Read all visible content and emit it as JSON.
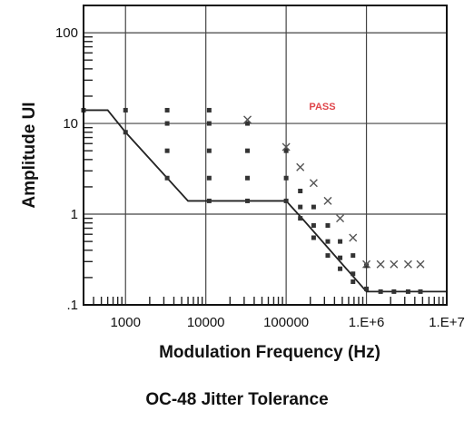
{
  "caption": "OC-48 Jitter Tolerance",
  "chart_data": {
    "type": "scatter",
    "title": "",
    "xlabel": "Modulation Frequency (Hz)",
    "ylabel": "Amplitude UI",
    "x_scale": "log",
    "y_scale": "log",
    "xlim": [
      300,
      10000000
    ],
    "ylim": [
      0.1,
      200
    ],
    "x_tick_values": [
      1000,
      10000,
      100000,
      1000000,
      10000000
    ],
    "x_tick_labels": [
      "1000",
      "10000",
      "100000",
      "1.E+6",
      "1.E+7"
    ],
    "y_tick_values": [
      0.1,
      1,
      10,
      100
    ],
    "y_tick_labels": [
      ".1",
      "1",
      "10",
      "100"
    ],
    "grid": true,
    "annotations": [
      "PASS"
    ],
    "colors": {
      "annotation": "#e0464b",
      "line": "#222222",
      "grid": "#444444"
    },
    "series": [
      {
        "marker": "line",
        "x": [
          300,
          600,
          1000,
          6000,
          10000,
          100000,
          167000,
          1000000,
          10000000
        ],
        "y": [
          14,
          14,
          8,
          1.4,
          1.4,
          1.4,
          0.85,
          0.14,
          0.14
        ]
      },
      {
        "marker": "dot",
        "x": [
          300,
          1000,
          1000,
          3300,
          3300,
          3300,
          3300,
          11000,
          11000,
          11000,
          11000,
          11000,
          33000,
          33000,
          33000,
          33000,
          100000,
          100000,
          100000,
          150000,
          150000,
          150000,
          220000,
          220000,
          220000,
          330000,
          330000,
          330000,
          470000,
          470000,
          470000,
          680000,
          680000,
          680000,
          1000000,
          1000000,
          1500000,
          2200000,
          3300000,
          4700000
        ],
        "y": [
          14,
          14,
          8,
          14,
          10,
          5,
          2.5,
          14,
          10,
          5,
          2.5,
          1.4,
          10,
          5,
          2.5,
          1.4,
          5,
          2.5,
          1.4,
          1.8,
          1.2,
          0.9,
          1.2,
          0.75,
          0.55,
          0.75,
          0.5,
          0.35,
          0.5,
          0.33,
          0.25,
          0.35,
          0.22,
          0.18,
          0.27,
          0.15,
          0.14,
          0.14,
          0.14,
          0.14
        ]
      },
      {
        "marker": "x",
        "x": [
          33000,
          100000,
          150000,
          220000,
          330000,
          470000,
          680000,
          1000000,
          1500000,
          2200000,
          3300000,
          4700000
        ],
        "y": [
          11,
          5.5,
          3.3,
          2.2,
          1.4,
          0.9,
          0.55,
          0.28,
          0.28,
          0.28,
          0.28,
          0.28
        ]
      }
    ]
  }
}
